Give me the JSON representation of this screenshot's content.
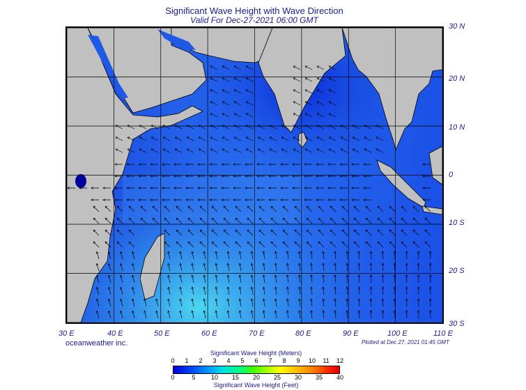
{
  "title": "Significant Wave Height with Wave Direction",
  "subtitle": "Valid For Dec-27-2021 06:00 GMT",
  "lat_labels": [
    "30 N",
    "20 N",
    "10 N",
    "0",
    "10 S",
    "20 S",
    "30 S"
  ],
  "lon_labels": [
    "30 E",
    "40 E",
    "50 E",
    "60 E",
    "70 E",
    "80 E",
    "90 E",
    "100 E",
    "110 E"
  ],
  "credit": "oceanweather inc.",
  "plotted": "Plotted at Dec 27, 2021 01:45 GMT",
  "legend": {
    "meters_title": "Significant Wave Height (Meters)",
    "feet_title": "Significant Wave Height (Feet)",
    "meters_ticks": [
      "0",
      "1",
      "2",
      "3",
      "4",
      "5",
      "6",
      "7",
      "8",
      "9",
      "10",
      "11",
      "12"
    ],
    "feet_ticks": [
      "0",
      "5",
      "10",
      "15",
      "20",
      "25",
      "30",
      "35",
      "40"
    ]
  },
  "colors": {
    "land": "#c0c0c0",
    "ocean_low": "#0000d8",
    "ocean_mid": "#1e64f0",
    "ocean_high": "#3cc8f0",
    "text": "#1a1a8c"
  }
}
